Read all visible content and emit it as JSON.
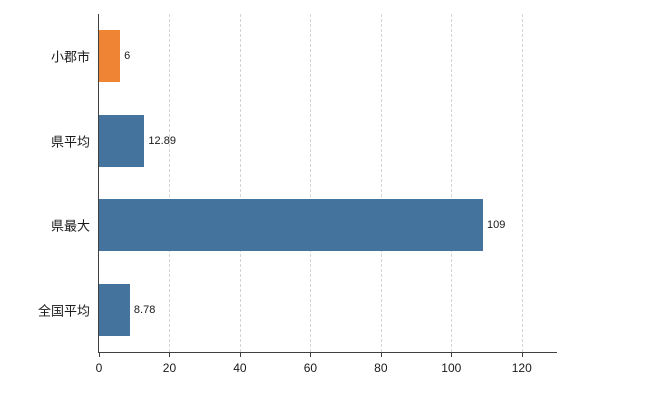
{
  "chart_data": {
    "type": "bar",
    "orientation": "horizontal",
    "title": "",
    "xlabel": "",
    "ylabel": "",
    "categories": [
      "小郡市",
      "県平均",
      "県最大",
      "全国平均"
    ],
    "values": [
      6,
      12.89,
      109,
      8.78
    ],
    "value_labels": [
      "6",
      "12.89",
      "109",
      "8.78"
    ],
    "bar_colors": [
      "#ee8434",
      "#44739e",
      "#44739e",
      "#44739e"
    ],
    "xticks": [
      0,
      20,
      40,
      60,
      80,
      100,
      120
    ],
    "xlim": [
      0,
      130
    ],
    "grid": "vertical-dashed",
    "gridline_color": "#d4d4d4",
    "axis_color": "#404040",
    "background": "#ffffff",
    "legend": "none"
  }
}
